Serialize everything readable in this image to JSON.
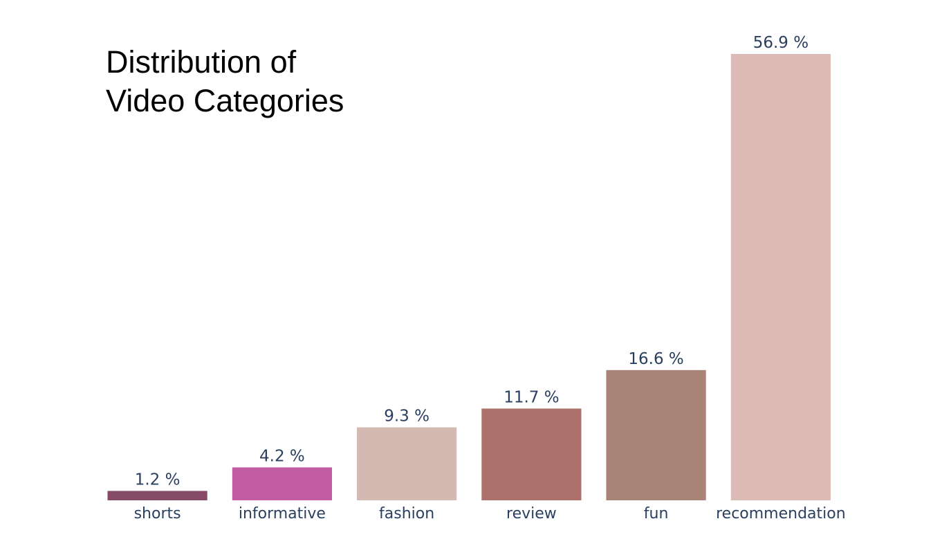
{
  "chart_data": {
    "type": "bar",
    "title_lines": [
      "Distribution of",
      "Video Categories"
    ],
    "categories": [
      "shorts",
      "informative",
      "fashion",
      "review",
      "fun",
      "recommendation"
    ],
    "values": [
      1.2,
      4.2,
      9.3,
      11.7,
      16.6,
      56.9
    ],
    "value_labels": [
      "1.2 %",
      "4.2 %",
      "9.3 %",
      "11.7 %",
      "16.6 %",
      "56.9 %"
    ],
    "colors": [
      "#864b67",
      "#c15da0",
      "#d3b9b2",
      "#ab716a",
      "#aa8377",
      "#dcbbb7"
    ],
    "ylim": [
      0,
      56.9
    ],
    "xlabel": "",
    "ylabel": "",
    "grid": false,
    "legend": false,
    "label_color": "#2a3f5f",
    "tick_color": "#2a3f5f"
  }
}
